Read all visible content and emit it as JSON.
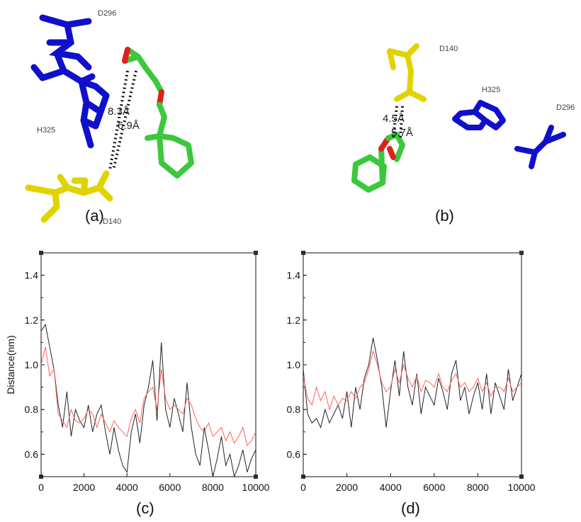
{
  "panels": {
    "a": {
      "caption": "(a)",
      "labels": {
        "d296": "D296",
        "h325": "H325",
        "d140": "D140"
      },
      "distances": [
        "8.3Å",
        "6.9Å"
      ]
    },
    "b": {
      "caption": "(b)",
      "labels": {
        "d140": "D140",
        "h325": "H325",
        "d296": "D296"
      },
      "distances": [
        "4.5Å",
        "5.7Å"
      ]
    },
    "c": {
      "caption": "(c)"
    },
    "d": {
      "caption": "(d)"
    }
  },
  "colors": {
    "residue_blue": "#1010cc",
    "residue_yellow": "#e0d400",
    "ligand_green": "#3cc83c",
    "oxygen_red": "#e02020",
    "series_black": "#222222",
    "series_red": "#ff6060"
  },
  "chart_data": [
    {
      "id": "c",
      "type": "line",
      "ylabel": "Distance(nm)",
      "xlabel": "",
      "xlim": [
        0,
        10000
      ],
      "ylim": [
        0.5,
        1.5
      ],
      "xticks": [
        "0",
        "2000",
        "4000",
        "6000",
        "8000",
        "10000"
      ],
      "yticks": [
        "0.6",
        "0.8",
        "1.0",
        "1.2",
        "1.4"
      ],
      "grid": false,
      "x": [
        0,
        200,
        400,
        600,
        800,
        1000,
        1200,
        1400,
        1600,
        1800,
        2000,
        2200,
        2400,
        2600,
        2800,
        3000,
        3200,
        3400,
        3600,
        3800,
        4000,
        4200,
        4400,
        4600,
        4800,
        5000,
        5200,
        5400,
        5600,
        5800,
        6000,
        6200,
        6400,
        6600,
        6800,
        7000,
        7200,
        7400,
        7600,
        7800,
        8000,
        8200,
        8400,
        8600,
        8800,
        9000,
        9200,
        9400,
        9600,
        9800,
        10000
      ],
      "series": [
        {
          "color": "#222222",
          "values": [
            1.15,
            1.18,
            1.08,
            0.98,
            0.82,
            0.72,
            0.88,
            0.68,
            0.8,
            0.75,
            0.72,
            0.82,
            0.7,
            0.78,
            0.82,
            0.7,
            0.6,
            0.72,
            0.62,
            0.55,
            0.52,
            0.7,
            0.78,
            0.65,
            0.82,
            0.9,
            1.02,
            0.75,
            1.1,
            0.8,
            0.72,
            0.85,
            0.78,
            0.7,
            0.92,
            0.72,
            0.6,
            0.55,
            0.72,
            0.62,
            0.5,
            0.58,
            0.68,
            0.55,
            0.6,
            0.5,
            0.55,
            0.62,
            0.52,
            0.58,
            0.62
          ]
        },
        {
          "color": "#ff6060",
          "values": [
            1.0,
            1.08,
            0.95,
            0.98,
            0.78,
            0.75,
            0.72,
            0.8,
            0.75,
            0.74,
            0.76,
            0.8,
            0.78,
            0.72,
            0.78,
            0.74,
            0.7,
            0.75,
            0.72,
            0.7,
            0.68,
            0.76,
            0.8,
            0.74,
            0.85,
            0.88,
            0.9,
            0.8,
            0.98,
            0.85,
            0.8,
            0.82,
            0.8,
            0.78,
            0.85,
            0.82,
            0.76,
            0.72,
            0.7,
            0.74,
            0.68,
            0.7,
            0.72,
            0.66,
            0.7,
            0.65,
            0.68,
            0.72,
            0.64,
            0.66,
            0.7
          ]
        }
      ]
    },
    {
      "id": "d",
      "type": "line",
      "ylabel": "Distance(nm)",
      "xlabel": "",
      "xlim": [
        0,
        10000
      ],
      "ylim": [
        0.5,
        1.5
      ],
      "xticks": [
        "0",
        "2000",
        "4000",
        "6000",
        "8000",
        "10000"
      ],
      "yticks": [
        "0.6",
        "0.8",
        "1.0",
        "1.2",
        "1.4"
      ],
      "grid": false,
      "x": [
        0,
        200,
        400,
        600,
        800,
        1000,
        1200,
        1400,
        1600,
        1800,
        2000,
        2200,
        2400,
        2600,
        2800,
        3000,
        3200,
        3400,
        3600,
        3800,
        4000,
        4200,
        4400,
        4600,
        4800,
        5000,
        5200,
        5400,
        5600,
        5800,
        6000,
        6200,
        6400,
        6600,
        6800,
        7000,
        7200,
        7400,
        7600,
        7800,
        8000,
        8200,
        8400,
        8600,
        8800,
        9000,
        9200,
        9400,
        9600,
        9800,
        10000
      ],
      "series": [
        {
          "color": "#222222",
          "values": [
            0.98,
            0.78,
            0.74,
            0.76,
            0.72,
            0.8,
            0.74,
            0.78,
            0.82,
            0.76,
            0.88,
            0.72,
            0.9,
            0.8,
            0.94,
            1.0,
            1.12,
            1.02,
            0.9,
            0.72,
            0.88,
            1.02,
            0.86,
            1.06,
            0.9,
            0.82,
            0.96,
            0.78,
            0.9,
            0.86,
            0.82,
            0.94,
            0.88,
            0.8,
            0.96,
            1.02,
            0.84,
            0.9,
            0.78,
            0.86,
            0.92,
            0.8,
            0.96,
            0.78,
            0.92,
            0.86,
            0.8,
            0.98,
            0.84,
            0.9,
            0.96
          ]
        },
        {
          "color": "#ff6060",
          "values": [
            0.95,
            0.85,
            0.82,
            0.9,
            0.84,
            0.88,
            0.8,
            0.86,
            0.82,
            0.85,
            0.84,
            0.88,
            0.85,
            0.9,
            0.92,
            0.98,
            1.06,
            1.0,
            0.92,
            0.88,
            0.9,
            0.98,
            0.92,
            1.0,
            0.94,
            0.9,
            0.95,
            0.88,
            0.93,
            0.92,
            0.9,
            0.96,
            0.9,
            0.88,
            0.93,
            0.96,
            0.9,
            0.92,
            0.88,
            0.9,
            0.94,
            0.88,
            0.92,
            0.86,
            0.9,
            0.9,
            0.88,
            0.94,
            0.88,
            0.9,
            0.92
          ]
        }
      ]
    }
  ]
}
